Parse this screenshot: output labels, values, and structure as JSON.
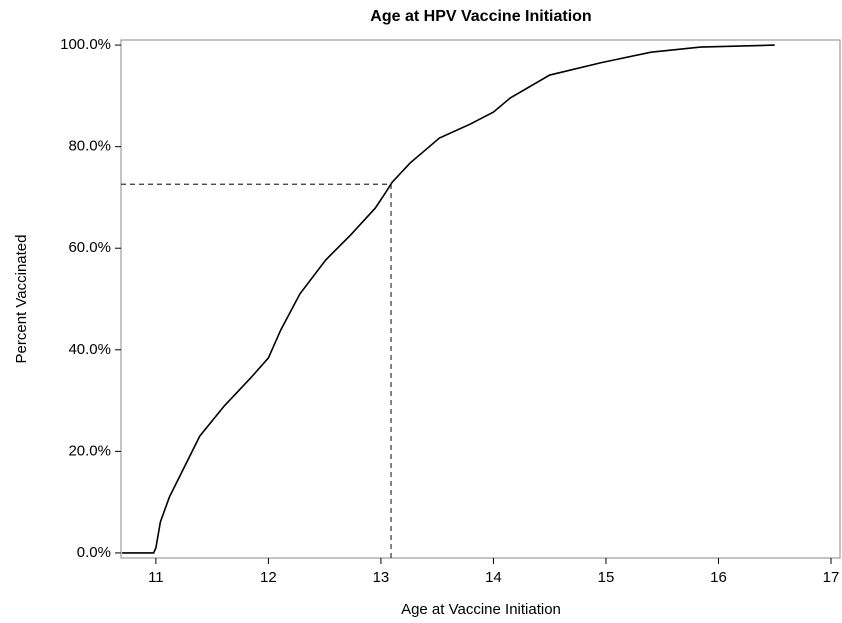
{
  "chart_data": {
    "type": "line",
    "title": "Age at HPV Vaccine Initiation",
    "xlabel": "Age at Vaccine Initiation",
    "ylabel": "Percent Vaccinated",
    "x": [
      10.7,
      10.98,
      11.0,
      11.04,
      11.12,
      11.21,
      11.39,
      11.61,
      11.84,
      12.0,
      12.11,
      12.28,
      12.51,
      12.73,
      12.95,
      13.04,
      13.1,
      13.26,
      13.52,
      13.79,
      14.0,
      14.15,
      14.5,
      14.95,
      15.4,
      15.84,
      16.5
    ],
    "values": [
      0,
      0,
      1,
      6.1,
      11,
      15,
      23,
      29,
      34.4,
      38.4,
      43.9,
      51,
      57.7,
      62.6,
      67.9,
      70.9,
      73,
      76.8,
      81.7,
      84.4,
      86.8,
      89.6,
      94.1,
      96.5,
      98.6,
      99.6,
      100
    ],
    "color": "#000000",
    "reference": {
      "x": 13.09,
      "y": 72.6
    },
    "xlim": [
      10.69,
      17.08
    ],
    "xticks": [
      11,
      12,
      13,
      14,
      15,
      16,
      17
    ],
    "ylim": [
      -1,
      101
    ],
    "yticks": [
      {
        "value": 0,
        "label": "0.0%"
      },
      {
        "value": 20,
        "label": "20.0%"
      },
      {
        "value": 40,
        "label": "40.0%"
      },
      {
        "value": 60,
        "label": "60.0%"
      },
      {
        "value": 80,
        "label": "80.0%"
      },
      {
        "value": 100,
        "label": "100.0%"
      }
    ],
    "grid": false
  }
}
